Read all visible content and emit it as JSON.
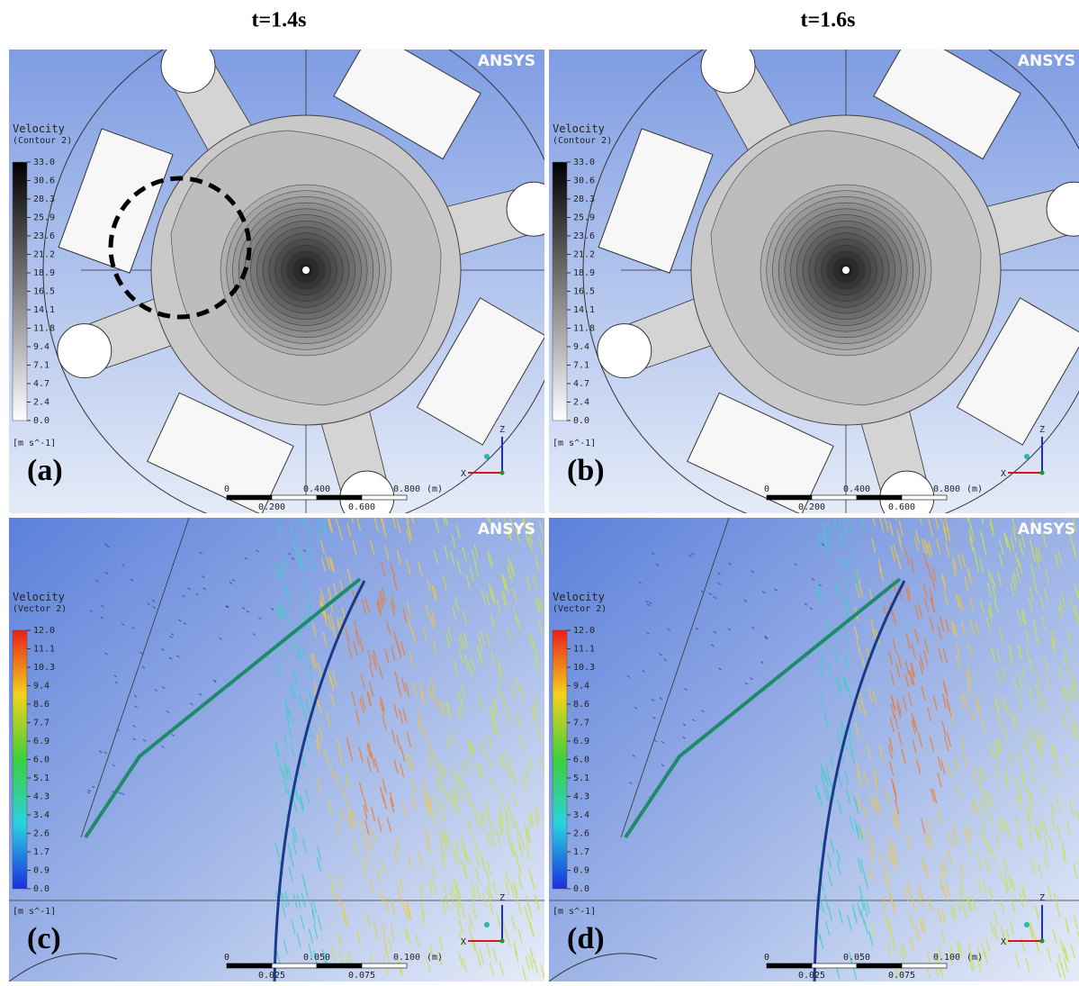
{
  "columns": [
    {
      "title": "t=1.4s"
    },
    {
      "title": "t=1.6s"
    }
  ],
  "panels": [
    {
      "label": "(a)",
      "logo": "ANSYS",
      "legend": {
        "title": "Velocity",
        "subtitle": "(Contour 2)",
        "values": [
          "33.0",
          "30.6",
          "28.3",
          "25.9",
          "23.6",
          "21.2",
          "18.9",
          "16.5",
          "14.1",
          "11.8",
          "9.4",
          "7.1",
          "4.7",
          "2.4",
          "0.0"
        ],
        "unit": "[m s^-1]"
      },
      "scale": {
        "top": [
          "0",
          "0.400",
          "0.800",
          "(m)"
        ],
        "bottom": [
          "0.200",
          "0.600"
        ]
      },
      "triad": [
        "Z",
        "X"
      ]
    },
    {
      "label": "(b)",
      "logo": "ANSYS",
      "legend": {
        "title": "Velocity",
        "subtitle": "(Contour 2)",
        "values": [
          "33.0",
          "30.6",
          "28.3",
          "25.9",
          "23.6",
          "21.2",
          "18.9",
          "16.5",
          "14.1",
          "11.8",
          "9.4",
          "7.1",
          "4.7",
          "2.4",
          "0.0"
        ],
        "unit": "[m s^-1]"
      },
      "scale": {
        "top": [
          "0",
          "0.400",
          "0.800",
          "(m)"
        ],
        "bottom": [
          "0.200",
          "0.600"
        ]
      },
      "triad": [
        "Z",
        "X"
      ]
    },
    {
      "label": "(c)",
      "logo": "ANSYS",
      "legend": {
        "title": "Velocity",
        "subtitle": "(Vector 2)",
        "values": [
          "12.0",
          "11.1",
          "10.3",
          "9.4",
          "8.6",
          "7.7",
          "6.9",
          "6.0",
          "5.1",
          "4.3",
          "3.4",
          "2.6",
          "1.7",
          "0.9",
          "0.0"
        ],
        "unit": "[m s^-1]"
      },
      "scale": {
        "top": [
          "0",
          "0.050",
          "0.100",
          "(m)"
        ],
        "bottom": [
          "0.025",
          "0.075"
        ]
      },
      "triad": [
        "Z",
        "X"
      ]
    },
    {
      "label": "(d)",
      "logo": "ANSYS",
      "legend": {
        "title": "Velocity",
        "subtitle": "(Vector 2)",
        "values": [
          "12.0",
          "11.1",
          "10.3",
          "9.4",
          "8.6",
          "7.7",
          "6.9",
          "6.0",
          "5.1",
          "4.3",
          "3.4",
          "2.6",
          "1.7",
          "0.9",
          "0.0"
        ],
        "unit": "[m s^-1]"
      },
      "scale": {
        "top": [
          "0",
          "0.050",
          "0.100",
          "(m)"
        ],
        "bottom": [
          "0.025",
          "0.075"
        ]
      },
      "triad": [
        "Z",
        "X"
      ]
    }
  ]
}
